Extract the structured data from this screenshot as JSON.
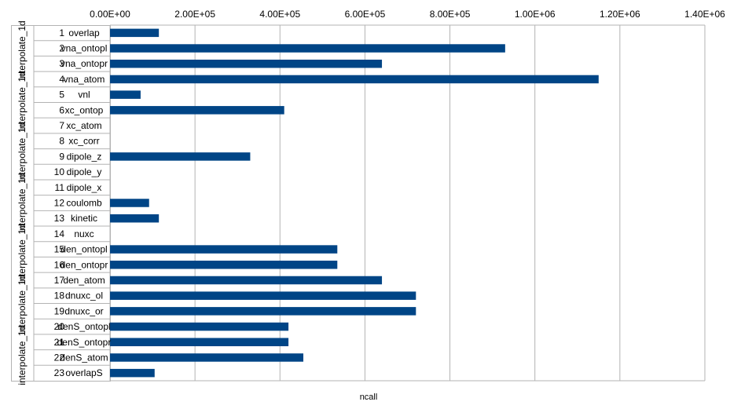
{
  "chart_data": {
    "type": "bar",
    "orientation": "horizontal",
    "xlabel": "ncall",
    "ylabel": "",
    "xlim": [
      0,
      1400000
    ],
    "x_ticks": [
      0,
      200000,
      400000,
      600000,
      800000,
      1000000,
      1200000,
      1400000
    ],
    "x_tick_labels": [
      "0.00E+00",
      "2.00E+05",
      "4.00E+05",
      "6.00E+05",
      "8.00E+05",
      "1.00E+06",
      "1.20E+06",
      "1.40E+06"
    ],
    "x_axis_position": "top",
    "grid": true,
    "legend": "none",
    "bar_color": "#004586",
    "group_label": "interpolate_1d",
    "group_labels": [
      "interpolate_1d",
      "interpolate_1d",
      "interpolate_1d",
      "interpolate_1d",
      "interpolate_1d",
      "interpolate_1d",
      "interpolate_1d"
    ],
    "categories": [
      {
        "num": "1",
        "name": "overlap"
      },
      {
        "num": "2",
        "name": "vna_ontopl"
      },
      {
        "num": "3",
        "name": "vna_ontopr"
      },
      {
        "num": "4",
        "name": "vna_atom"
      },
      {
        "num": "5",
        "name": "vnl"
      },
      {
        "num": "6",
        "name": "xc_ontop"
      },
      {
        "num": "7",
        "name": "xc_atom"
      },
      {
        "num": "8",
        "name": "xc_corr"
      },
      {
        "num": "9",
        "name": "dipole_z"
      },
      {
        "num": "10",
        "name": "dipole_y"
      },
      {
        "num": "11",
        "name": "dipole_x"
      },
      {
        "num": "12",
        "name": "coulomb"
      },
      {
        "num": "13",
        "name": "kinetic"
      },
      {
        "num": "14",
        "name": "nuxc"
      },
      {
        "num": "15",
        "name": "den_ontopl"
      },
      {
        "num": "16",
        "name": "den_ontopr"
      },
      {
        "num": "17",
        "name": "den_atom"
      },
      {
        "num": "18",
        "name": "dnuxc_ol"
      },
      {
        "num": "19",
        "name": "dnuxc_or"
      },
      {
        "num": "20",
        "name": "denS_ontopl"
      },
      {
        "num": "21",
        "name": "denS_ontopr"
      },
      {
        "num": "22",
        "name": "denS_atom"
      },
      {
        "num": "23",
        "name": "overlapS"
      }
    ],
    "values": [
      115000,
      930000,
      640000,
      1150000,
      72000,
      410000,
      0,
      0,
      330000,
      0,
      0,
      92000,
      115000,
      0,
      535000,
      535000,
      640000,
      720000,
      720000,
      420000,
      420000,
      455000,
      105000
    ]
  }
}
